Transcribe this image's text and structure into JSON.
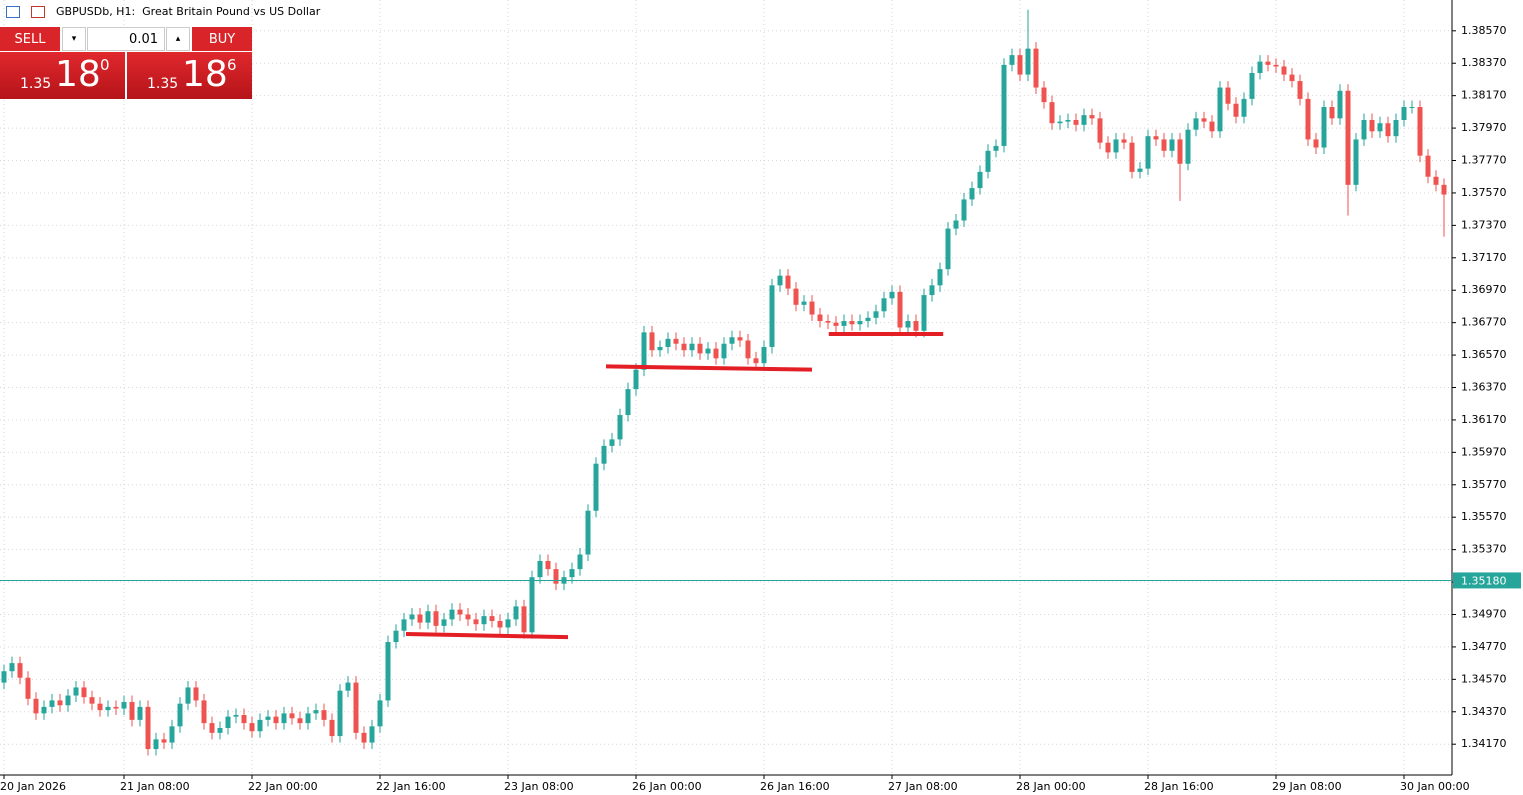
{
  "chart_data": {
    "type": "candlestick",
    "title": "GBPUSDb, H1:  Great Britain Pound vs US Dollar",
    "categories": [
      "20 Jan 2026",
      null,
      null,
      null,
      null,
      null,
      null,
      null,
      null,
      null,
      null,
      null,
      null,
      null,
      null,
      "21 Jan 08:00",
      null,
      null,
      null,
      null,
      null,
      null,
      null,
      null,
      null,
      null,
      null,
      null,
      null,
      null,
      null,
      "22 Jan 00:00",
      null,
      null,
      null,
      null,
      null,
      null,
      null,
      null,
      null,
      null,
      null,
      null,
      null,
      null,
      null,
      "22 Jan 16:00",
      null,
      null,
      null,
      null,
      null,
      null,
      null,
      null,
      null,
      null,
      null,
      null,
      null,
      null,
      null,
      "23 Jan 08:00",
      null,
      null,
      null,
      null,
      null,
      null,
      null,
      null,
      null,
      null,
      null,
      null,
      null,
      null,
      null,
      "26 Jan 00:00",
      null,
      null,
      null,
      null,
      null,
      null,
      null,
      null,
      null,
      null,
      null,
      null,
      null,
      null,
      null,
      "26 Jan 16:00",
      null,
      null,
      null,
      null,
      null,
      null,
      null,
      null,
      null,
      null,
      null,
      null,
      null,
      null,
      null,
      "27 Jan 08:00",
      null,
      null,
      null,
      null,
      null,
      null,
      null,
      null,
      null,
      null,
      null,
      null,
      null,
      null,
      null,
      "28 Jan 00:00",
      null,
      null,
      null,
      null,
      null,
      null,
      null,
      null,
      null,
      null,
      null,
      null,
      null,
      null,
      null,
      "28 Jan 16:00",
      null,
      null,
      null,
      null,
      null,
      null,
      null,
      null,
      null,
      null,
      null,
      null,
      null,
      null,
      null,
      "29 Jan 08:00",
      null,
      null,
      null,
      null,
      null,
      null,
      null,
      null,
      null,
      null,
      null,
      null,
      null,
      null,
      null,
      "30 Jan 00:00",
      null,
      null,
      null,
      null,
      null
    ],
    "open": [
      1.3455,
      1.3462,
      1.3467,
      1.3458,
      1.3445,
      1.3436,
      1.344,
      1.3444,
      1.3441,
      1.3447,
      1.3452,
      1.3446,
      1.3442,
      1.3438,
      1.344,
      1.3439,
      1.3443,
      1.3432,
      1.344,
      1.3414,
      1.342,
      1.3418,
      1.3428,
      1.3442,
      1.3452,
      1.3444,
      1.343,
      1.3424,
      1.3427,
      1.3434,
      1.3435,
      1.343,
      1.3425,
      1.3432,
      1.3434,
      1.343,
      1.3436,
      1.3433,
      1.343,
      1.3436,
      1.3438,
      1.3432,
      1.3422,
      1.345,
      1.3455,
      1.3424,
      1.3418,
      1.3428,
      1.3444,
      1.348,
      1.3487,
      1.3494,
      1.3497,
      1.3492,
      1.3499,
      1.349,
      1.3494,
      1.35,
      1.3497,
      1.3494,
      1.3491,
      1.3496,
      1.3493,
      1.3489,
      1.3494,
      1.3502,
      1.3486,
      1.352,
      1.353,
      1.3525,
      1.3516,
      1.352,
      1.3525,
      1.3534,
      1.3561,
      1.359,
      1.3601,
      1.3605,
      1.362,
      1.3636,
      1.3648,
      1.3671,
      1.366,
      1.3662,
      1.3667,
      1.3664,
      1.366,
      1.3664,
      1.3658,
      1.3661,
      1.3655,
      1.3664,
      1.3668,
      1.3666,
      1.3655,
      1.3652,
      1.3662,
      1.37,
      1.3706,
      1.3698,
      1.3688,
      1.369,
      1.3682,
      1.3678,
      1.3677,
      1.3675,
      1.3678,
      1.3676,
      1.3678,
      1.368,
      1.3684,
      1.3692,
      1.3696,
      1.3674,
      1.3678,
      1.3672,
      1.3694,
      1.37,
      1.371,
      1.3735,
      1.374,
      1.3753,
      1.376,
      1.377,
      1.3783,
      1.3786,
      1.3836,
      1.3842,
      1.383,
      1.3846,
      1.3822,
      1.3813,
      1.38,
      1.3801,
      1.3802,
      1.3799,
      1.3805,
      1.3803,
      1.3788,
      1.3782,
      1.379,
      1.3788,
      1.377,
      1.3772,
      1.3792,
      1.379,
      1.3783,
      1.379,
      1.3775,
      1.3796,
      1.3803,
      1.3801,
      1.3795,
      1.3822,
      1.3812,
      1.3804,
      1.3815,
      1.3831,
      1.3838,
      1.3836,
      1.3835,
      1.383,
      1.3826,
      1.3815,
      1.379,
      1.3785,
      1.381,
      1.3803,
      1.382,
      1.3762,
      1.379,
      1.3802,
      1.3795,
      1.38,
      1.3792,
      1.3802,
      1.381,
      1.381,
      1.378,
      1.3767,
      1.3762
    ],
    "high": [
      1.3466,
      1.3471,
      1.3471,
      1.3462,
      1.3449,
      1.3444,
      1.3448,
      1.3448,
      1.3451,
      1.3456,
      1.3456,
      1.345,
      1.3446,
      1.3444,
      1.3444,
      1.3447,
      1.3447,
      1.3444,
      1.3444,
      1.3424,
      1.3424,
      1.3432,
      1.3446,
      1.3456,
      1.3456,
      1.3448,
      1.3434,
      1.3431,
      1.3438,
      1.3439,
      1.3439,
      1.3434,
      1.3436,
      1.3438,
      1.3438,
      1.344,
      1.344,
      1.3437,
      1.344,
      1.3442,
      1.3442,
      1.3436,
      1.3454,
      1.3459,
      1.3459,
      1.3428,
      1.3432,
      1.3448,
      1.3484,
      1.3491,
      1.3498,
      1.3501,
      1.3501,
      1.3503,
      1.3503,
      1.3498,
      1.3504,
      1.3504,
      1.3501,
      1.3498,
      1.35,
      1.35,
      1.3497,
      1.3498,
      1.3506,
      1.3506,
      1.3524,
      1.3534,
      1.3534,
      1.3529,
      1.3524,
      1.3529,
      1.3538,
      1.3565,
      1.3594,
      1.3605,
      1.3609,
      1.3624,
      1.364,
      1.3652,
      1.3675,
      1.3675,
      1.3666,
      1.3671,
      1.3671,
      1.3668,
      1.3668,
      1.3668,
      1.3665,
      1.3665,
      1.3668,
      1.3672,
      1.3672,
      1.367,
      1.3659,
      1.3666,
      1.3704,
      1.371,
      1.371,
      1.3702,
      1.3694,
      1.3694,
      1.3686,
      1.3682,
      1.3681,
      1.3682,
      1.3682,
      1.3682,
      1.3684,
      1.3688,
      1.3696,
      1.37,
      1.37,
      1.3682,
      1.3682,
      1.3698,
      1.3704,
      1.3714,
      1.3739,
      1.3744,
      1.3757,
      1.3764,
      1.3774,
      1.3787,
      1.379,
      1.384,
      1.3846,
      1.3846,
      1.387,
      1.385,
      1.3826,
      1.3817,
      1.3805,
      1.3806,
      1.3806,
      1.3809,
      1.3809,
      1.3807,
      1.3792,
      1.3794,
      1.3794,
      1.3792,
      1.3776,
      1.3796,
      1.3796,
      1.3794,
      1.3794,
      1.3794,
      1.38,
      1.3807,
      1.3807,
      1.3805,
      1.3826,
      1.3826,
      1.3816,
      1.3819,
      1.3835,
      1.3842,
      1.3842,
      1.384,
      1.3839,
      1.3834,
      1.383,
      1.3819,
      1.3794,
      1.3814,
      1.3814,
      1.3824,
      1.3824,
      1.3794,
      1.3806,
      1.3806,
      1.3804,
      1.3804,
      1.3806,
      1.3814,
      1.3814,
      1.3814,
      1.3784,
      1.3771,
      1.3766
    ],
    "low": [
      1.3451,
      1.3458,
      1.3454,
      1.3441,
      1.3432,
      1.3432,
      1.3436,
      1.3437,
      1.3437,
      1.3443,
      1.3442,
      1.3438,
      1.3434,
      1.3434,
      1.3435,
      1.3435,
      1.3428,
      1.3428,
      1.341,
      1.341,
      1.3414,
      1.3414,
      1.3424,
      1.3438,
      1.344,
      1.3426,
      1.342,
      1.342,
      1.3423,
      1.343,
      1.3426,
      1.3421,
      1.3421,
      1.3428,
      1.3426,
      1.3426,
      1.3429,
      1.3426,
      1.3426,
      1.3432,
      1.3428,
      1.3418,
      1.3418,
      1.3446,
      1.342,
      1.3414,
      1.3414,
      1.3424,
      1.344,
      1.3476,
      1.3483,
      1.349,
      1.3488,
      1.3488,
      1.3486,
      1.3486,
      1.349,
      1.3493,
      1.349,
      1.3487,
      1.3487,
      1.3489,
      1.3485,
      1.3485,
      1.349,
      1.3482,
      1.3482,
      1.3516,
      1.3521,
      1.3512,
      1.3512,
      1.3516,
      1.3521,
      1.353,
      1.3557,
      1.3586,
      1.3597,
      1.3601,
      1.3616,
      1.3632,
      1.3644,
      1.3656,
      1.3656,
      1.3658,
      1.366,
      1.3656,
      1.3656,
      1.3654,
      1.3654,
      1.3651,
      1.3651,
      1.366,
      1.3662,
      1.3651,
      1.3648,
      1.3648,
      1.3658,
      1.3696,
      1.3694,
      1.3684,
      1.3684,
      1.3678,
      1.3674,
      1.3673,
      1.3671,
      1.3671,
      1.3672,
      1.3672,
      1.3674,
      1.3676,
      1.368,
      1.3688,
      1.367,
      1.367,
      1.3668,
      1.3668,
      1.369,
      1.3696,
      1.3706,
      1.3731,
      1.3736,
      1.3749,
      1.3756,
      1.3766,
      1.3779,
      1.3782,
      1.3832,
      1.3826,
      1.3826,
      1.3818,
      1.3809,
      1.3796,
      1.3796,
      1.3797,
      1.3795,
      1.3795,
      1.3799,
      1.3784,
      1.3778,
      1.3778,
      1.3784,
      1.3766,
      1.3766,
      1.3768,
      1.3786,
      1.3779,
      1.3779,
      1.3752,
      1.3771,
      1.3792,
      1.3797,
      1.3791,
      1.3791,
      1.3808,
      1.38,
      1.38,
      1.3811,
      1.3827,
      1.3832,
      1.3831,
      1.3826,
      1.3822,
      1.3811,
      1.3786,
      1.3781,
      1.3781,
      1.3799,
      1.3799,
      1.3743,
      1.3758,
      1.3786,
      1.3791,
      1.3791,
      1.3788,
      1.3788,
      1.3798,
      1.3806,
      1.3776,
      1.3763,
      1.3758,
      1.373
    ],
    "close": [
      1.3462,
      1.3467,
      1.3458,
      1.3445,
      1.3436,
      1.344,
      1.3444,
      1.3441,
      1.3447,
      1.3452,
      1.3446,
      1.3442,
      1.3438,
      1.344,
      1.3439,
      1.3443,
      1.3432,
      1.344,
      1.3414,
      1.342,
      1.3418,
      1.3428,
      1.3442,
      1.3452,
      1.3444,
      1.343,
      1.3424,
      1.3427,
      1.3434,
      1.3435,
      1.343,
      1.3425,
      1.3432,
      1.3434,
      1.343,
      1.3436,
      1.3433,
      1.343,
      1.3436,
      1.3438,
      1.3432,
      1.3422,
      1.345,
      1.3455,
      1.3424,
      1.3418,
      1.3428,
      1.3444,
      1.348,
      1.3487,
      1.3494,
      1.3497,
      1.3492,
      1.3499,
      1.349,
      1.3494,
      1.35,
      1.3497,
      1.3494,
      1.3491,
      1.3496,
      1.3493,
      1.3489,
      1.3494,
      1.3502,
      1.3486,
      1.352,
      1.353,
      1.3525,
      1.3516,
      1.352,
      1.3525,
      1.3534,
      1.3561,
      1.359,
      1.3601,
      1.3605,
      1.362,
      1.3636,
      1.3648,
      1.3671,
      1.366,
      1.3662,
      1.3667,
      1.3664,
      1.366,
      1.3664,
      1.3658,
      1.3661,
      1.3655,
      1.3664,
      1.3668,
      1.3666,
      1.3655,
      1.3652,
      1.3662,
      1.37,
      1.3706,
      1.3698,
      1.3688,
      1.369,
      1.3682,
      1.3678,
      1.3677,
      1.3675,
      1.3678,
      1.3676,
      1.3678,
      1.368,
      1.3684,
      1.3692,
      1.3696,
      1.3674,
      1.3678,
      1.3672,
      1.3694,
      1.37,
      1.371,
      1.3735,
      1.374,
      1.3753,
      1.376,
      1.377,
      1.3783,
      1.3786,
      1.3836,
      1.3842,
      1.383,
      1.3846,
      1.3822,
      1.3813,
      1.38,
      1.3801,
      1.3802,
      1.3799,
      1.3805,
      1.3803,
      1.3788,
      1.3782,
      1.379,
      1.3788,
      1.377,
      1.3772,
      1.3792,
      1.379,
      1.3783,
      1.379,
      1.3775,
      1.3796,
      1.3803,
      1.3801,
      1.3795,
      1.3822,
      1.3812,
      1.3804,
      1.3815,
      1.3831,
      1.3838,
      1.3836,
      1.3835,
      1.383,
      1.3826,
      1.3815,
      1.379,
      1.3785,
      1.381,
      1.3803,
      1.382,
      1.3762,
      1.379,
      1.3802,
      1.3795,
      1.38,
      1.3792,
      1.3802,
      1.381,
      1.381,
      1.378,
      1.3767,
      1.3762,
      1.3756
    ],
    "up_color": "#26a69a",
    "down_color": "#ef5350",
    "ylim": [
      1.3398,
      1.3876
    ],
    "yticks": [
      {
        "value": 1.3417,
        "label": "1.34170"
      },
      {
        "value": 1.3437,
        "label": "1.34370"
      },
      {
        "value": 1.3457,
        "label": "1.34570"
      },
      {
        "value": 1.3477,
        "label": "1.34770"
      },
      {
        "value": 1.3497,
        "label": "1.34970"
      },
      {
        "value": 1.3517,
        "label": "1.35170"
      },
      {
        "value": 1.3537,
        "label": "1.35370"
      },
      {
        "value": 1.3557,
        "label": "1.35570"
      },
      {
        "value": 1.3577,
        "label": "1.35770"
      },
      {
        "value": 1.3597,
        "label": "1.35970"
      },
      {
        "value": 1.3617,
        "label": "1.36170"
      },
      {
        "value": 1.3637,
        "label": "1.36370"
      },
      {
        "value": 1.3657,
        "label": "1.36570"
      },
      {
        "value": 1.3677,
        "label": "1.36770"
      },
      {
        "value": 1.3697,
        "label": "1.36970"
      },
      {
        "value": 1.3717,
        "label": "1.37170"
      },
      {
        "value": 1.3737,
        "label": "1.37370"
      },
      {
        "value": 1.3757,
        "label": "1.37570"
      },
      {
        "value": 1.3777,
        "label": "1.37770"
      },
      {
        "value": 1.3797,
        "label": "1.37970"
      },
      {
        "value": 1.3817,
        "label": "1.38170"
      },
      {
        "value": 1.3837,
        "label": "1.38370"
      },
      {
        "value": 1.3857,
        "label": "1.38570"
      }
    ],
    "grid": true,
    "current_price": {
      "value": 1.3518,
      "label": "1.35180",
      "color": "#26a69a"
    },
    "lines": [
      {
        "x": [
          50.25,
          70.5
        ],
        "y": [
          1.3485,
          1.3483
        ],
        "color": "#e31e24"
      },
      {
        "x": [
          75.25,
          101
        ],
        "y": [
          1.365,
          1.3648
        ],
        "color": "#e31e24"
      },
      {
        "x": [
          103.1,
          117.4
        ],
        "y": [
          1.367,
          1.367
        ],
        "color": "#e31e24"
      }
    ]
  },
  "trade_panel": {
    "sell": "SELL",
    "buy": "BUY",
    "volume": "0.01",
    "bid": {
      "prefix": "1.35",
      "main": "18",
      "small": "0"
    },
    "ask": {
      "prefix": "1.35",
      "main": "18",
      "small": "6"
    }
  }
}
